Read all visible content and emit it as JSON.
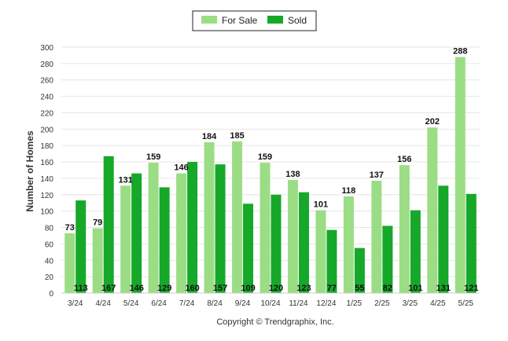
{
  "chart_data": {
    "type": "bar",
    "categories": [
      "3/24",
      "4/24",
      "5/24",
      "6/24",
      "7/24",
      "8/24",
      "9/24",
      "10/24",
      "11/24",
      "12/24",
      "1/25",
      "2/25",
      "3/25",
      "4/25",
      "5/25"
    ],
    "series": [
      {
        "name": "For Sale",
        "values": [
          73,
          79,
          131,
          159,
          146,
          184,
          185,
          159,
          138,
          101,
          118,
          137,
          156,
          202,
          288
        ]
      },
      {
        "name": "Sold",
        "values": [
          113,
          167,
          146,
          129,
          160,
          157,
          109,
          120,
          123,
          77,
          55,
          82,
          101,
          131,
          121
        ]
      }
    ],
    "colors": {
      "For Sale": "#9bdd85",
      "Sold": "#16a829"
    },
    "ylabel": "Number of Homes",
    "xlabel": "",
    "ylim": [
      0,
      300
    ],
    "yticks": [
      0,
      20,
      40,
      60,
      80,
      100,
      120,
      140,
      160,
      180,
      200,
      220,
      240,
      260,
      280,
      300
    ],
    "grid": true,
    "legend_position": "top-center",
    "data_labels": {
      "For Sale": "above bar",
      "Sold": "at bar base"
    }
  },
  "footer": "Copyright © Trendgraphix, Inc."
}
